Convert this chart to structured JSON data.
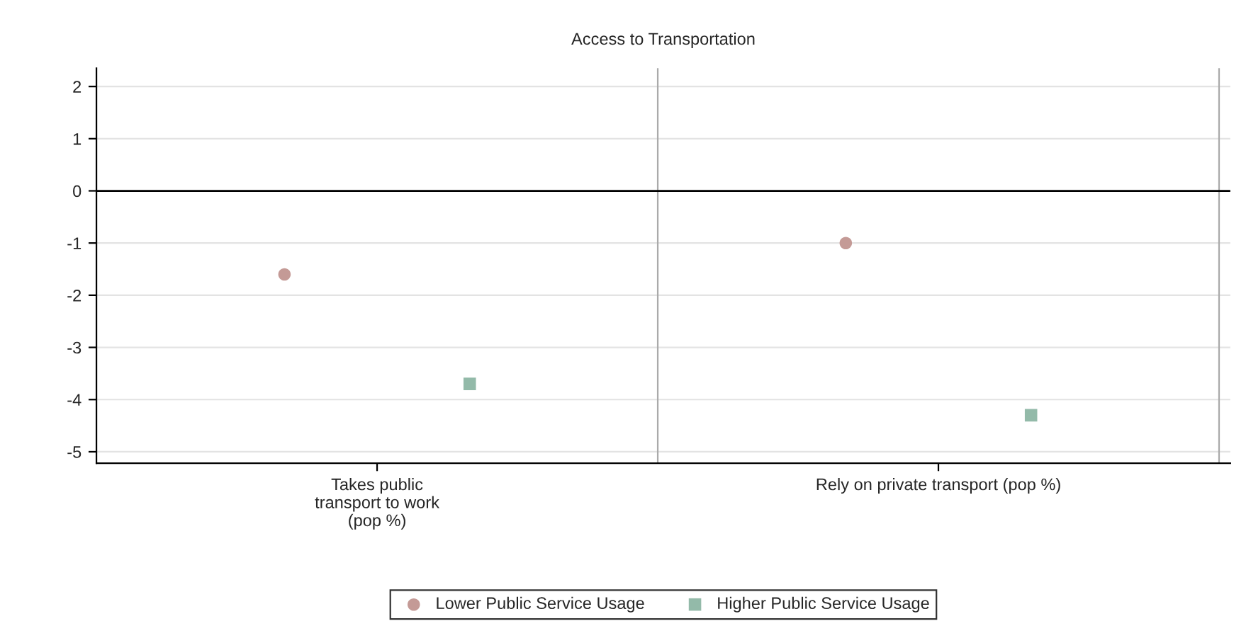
{
  "chart_data": {
    "type": "scatter",
    "title": "Access to Transportation",
    "categories": [
      "Takes public\ntransport to work\n(pop %)",
      "Rely on private transport (pop %)"
    ],
    "series": [
      {
        "name": "Lower Public Service Usage",
        "color": "#c49a96",
        "marker": "circle",
        "values": [
          -1.6,
          -1.0
        ]
      },
      {
        "name": "Higher Public Service Usage",
        "color": "#93baa9",
        "marker": "square",
        "values": [
          -3.7,
          -4.3
        ]
      }
    ],
    "ylim": [
      -5.22,
      2.35
    ],
    "yticks": [
      -5,
      -4,
      -3,
      -2,
      -1,
      0,
      1,
      2
    ],
    "ref_lines": [
      {
        "axis": "y",
        "value": 0,
        "color": "#000000"
      }
    ],
    "grid": "y",
    "legend": "bottom"
  }
}
